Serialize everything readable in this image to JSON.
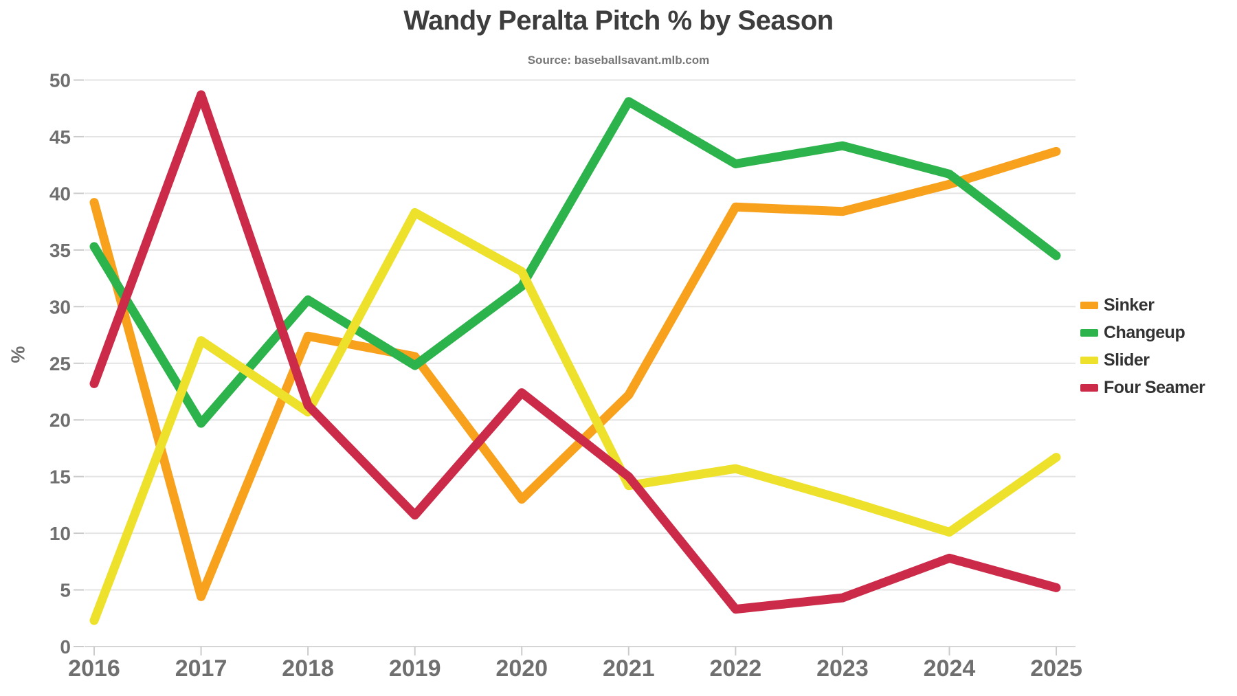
{
  "chart": {
    "title": "Wandy Peralta Pitch % by Season",
    "subtitle": "Source: baseballsavant.mlb.com",
    "ylabel": "%"
  },
  "chart_data": {
    "type": "line",
    "x": [
      "2016",
      "2017",
      "2018",
      "2019",
      "2020",
      "2021",
      "2022",
      "2023",
      "2024",
      "2025"
    ],
    "series": [
      {
        "name": "Sinker",
        "color": "#F7A11D",
        "values": [
          39.2,
          4.4,
          27.4,
          25.6,
          13.0,
          22.2,
          38.8,
          38.4,
          40.8,
          43.7
        ]
      },
      {
        "name": "Changeup",
        "color": "#2CB34B",
        "values": [
          35.3,
          19.7,
          30.6,
          24.8,
          31.8,
          48.1,
          42.6,
          44.2,
          41.7,
          34.5
        ]
      },
      {
        "name": "Slider",
        "color": "#EEE12B",
        "values": [
          2.3,
          27.0,
          20.7,
          38.3,
          33.1,
          14.2,
          15.7,
          13.0,
          10.1,
          16.7
        ]
      },
      {
        "name": "Four Seamer",
        "color": "#CB2B49",
        "values": [
          23.2,
          48.7,
          21.3,
          11.6,
          22.4,
          15.0,
          3.3,
          4.3,
          7.8,
          5.2
        ]
      }
    ],
    "title": "Wandy Peralta Pitch % by Season",
    "subtitle": "Source: baseballsavant.mlb.com",
    "xlabel": "",
    "ylabel": "%",
    "ylim": [
      0,
      50
    ],
    "y_tick_labels": [
      "0",
      "5",
      "10",
      "15",
      "20",
      "25",
      "30",
      "35",
      "40",
      "45",
      "50"
    ],
    "x_tick_labels": [
      "2016",
      "2017",
      "2018",
      "2019",
      "2020",
      "2021",
      "2022",
      "2023",
      "2024",
      "2025"
    ],
    "grid": true,
    "legend_position": "right"
  },
  "theme": {
    "grid_color": "#E4E4E4",
    "axis_line_color": "#D6D6D6",
    "tick_color": "#CBCBCB",
    "tick_label_color": "#6F6F6F",
    "background": "#FFFFFF"
  }
}
